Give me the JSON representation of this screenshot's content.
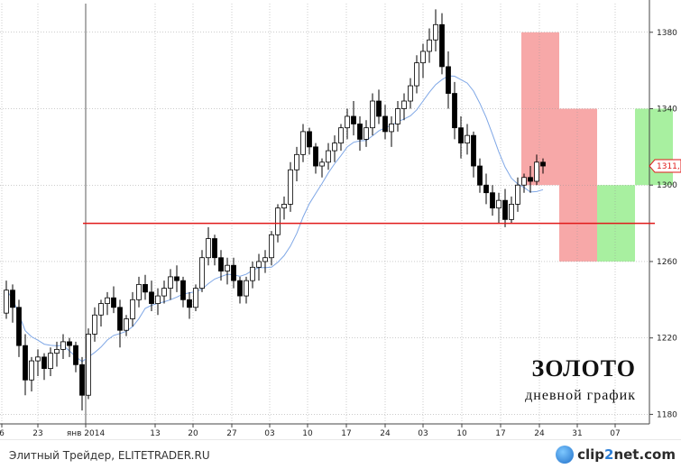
{
  "chart_data": {
    "type": "candlestick",
    "title": "ЗОЛОТО",
    "subtitle": "дневной график",
    "ylim": [
      1175,
      1395
    ],
    "yticks": [
      1180,
      1220,
      1260,
      1300,
      1340,
      1380
    ],
    "xticks": [
      "6",
      "23",
      "янв 2014",
      "13",
      "20",
      "27",
      "03",
      "10",
      "17",
      "24",
      "03",
      "10",
      "17",
      "24",
      "31",
      "07"
    ],
    "current_price_label": "1311,",
    "horizontal_line": 1280,
    "moving_average_color": "#7fa7e6",
    "zones": [
      {
        "color": "#f7a8a8",
        "start_bar": 82,
        "end_bar": 88,
        "low": 1300,
        "high": 1380
      },
      {
        "color": "#f7a8a8",
        "start_bar": 88,
        "end_bar": 94,
        "low": 1260,
        "high": 1340
      },
      {
        "color": "#a8f0a0",
        "start_bar": 94,
        "end_bar": 100,
        "low": 1260,
        "high": 1300
      },
      {
        "color": "#a8f0a0",
        "start_bar": 100,
        "end_bar": 106,
        "low": 1300,
        "high": 1340
      }
    ],
    "candles": [
      [
        1233,
        1250,
        1230,
        1245
      ],
      [
        1245,
        1248,
        1228,
        1236
      ],
      [
        1236,
        1240,
        1210,
        1216
      ],
      [
        1216,
        1222,
        1190,
        1198
      ],
      [
        1198,
        1210,
        1192,
        1208
      ],
      [
        1208,
        1214,
        1200,
        1210
      ],
      [
        1210,
        1212,
        1198,
        1204
      ],
      [
        1204,
        1215,
        1200,
        1212
      ],
      [
        1212,
        1218,
        1205,
        1214
      ],
      [
        1214,
        1222,
        1209,
        1218
      ],
      [
        1218,
        1220,
        1210,
        1216
      ],
      [
        1216,
        1218,
        1202,
        1206
      ],
      [
        1206,
        1210,
        1182,
        1190
      ],
      [
        1190,
        1225,
        1188,
        1222
      ],
      [
        1222,
        1236,
        1218,
        1232
      ],
      [
        1232,
        1240,
        1226,
        1238
      ],
      [
        1238,
        1244,
        1232,
        1241
      ],
      [
        1241,
        1247,
        1233,
        1236
      ],
      [
        1236,
        1240,
        1215,
        1224
      ],
      [
        1224,
        1232,
        1221,
        1230
      ],
      [
        1230,
        1244,
        1226,
        1240
      ],
      [
        1240,
        1252,
        1236,
        1248
      ],
      [
        1248,
        1253,
        1240,
        1244
      ],
      [
        1244,
        1250,
        1234,
        1238
      ],
      [
        1238,
        1246,
        1232,
        1242
      ],
      [
        1242,
        1250,
        1238,
        1246
      ],
      [
        1246,
        1256,
        1240,
        1252
      ],
      [
        1252,
        1258,
        1244,
        1250
      ],
      [
        1250,
        1252,
        1236,
        1240
      ],
      [
        1240,
        1244,
        1230,
        1236
      ],
      [
        1236,
        1248,
        1234,
        1246
      ],
      [
        1246,
        1266,
        1244,
        1262
      ],
      [
        1262,
        1278,
        1258,
        1272
      ],
      [
        1272,
        1274,
        1258,
        1262
      ],
      [
        1262,
        1266,
        1250,
        1255
      ],
      [
        1255,
        1262,
        1248,
        1258
      ],
      [
        1258,
        1262,
        1246,
        1250
      ],
      [
        1250,
        1252,
        1238,
        1242
      ],
      [
        1242,
        1252,
        1238,
        1250
      ],
      [
        1250,
        1260,
        1246,
        1257
      ],
      [
        1257,
        1264,
        1250,
        1260
      ],
      [
        1260,
        1266,
        1254,
        1262
      ],
      [
        1262,
        1276,
        1258,
        1274
      ],
      [
        1274,
        1290,
        1270,
        1288
      ],
      [
        1288,
        1294,
        1282,
        1290
      ],
      [
        1290,
        1312,
        1286,
        1308
      ],
      [
        1308,
        1320,
        1302,
        1316
      ],
      [
        1316,
        1332,
        1312,
        1328
      ],
      [
        1328,
        1330,
        1316,
        1320
      ],
      [
        1320,
        1322,
        1306,
        1310
      ],
      [
        1310,
        1314,
        1304,
        1312
      ],
      [
        1312,
        1322,
        1308,
        1318
      ],
      [
        1318,
        1326,
        1312,
        1322
      ],
      [
        1322,
        1332,
        1318,
        1330
      ],
      [
        1330,
        1340,
        1324,
        1336
      ],
      [
        1336,
        1344,
        1326,
        1332
      ],
      [
        1332,
        1336,
        1318,
        1324
      ],
      [
        1324,
        1334,
        1320,
        1330
      ],
      [
        1330,
        1348,
        1326,
        1344
      ],
      [
        1344,
        1350,
        1332,
        1336
      ],
      [
        1336,
        1342,
        1324,
        1328
      ],
      [
        1328,
        1336,
        1320,
        1332
      ],
      [
        1332,
        1344,
        1328,
        1340
      ],
      [
        1340,
        1348,
        1334,
        1344
      ],
      [
        1344,
        1356,
        1340,
        1352
      ],
      [
        1352,
        1368,
        1348,
        1364
      ],
      [
        1364,
        1374,
        1356,
        1370
      ],
      [
        1370,
        1382,
        1364,
        1376
      ],
      [
        1376,
        1392,
        1370,
        1384
      ],
      [
        1384,
        1390,
        1358,
        1362
      ],
      [
        1362,
        1370,
        1340,
        1348
      ],
      [
        1348,
        1354,
        1324,
        1330
      ],
      [
        1330,
        1336,
        1314,
        1322
      ],
      [
        1322,
        1332,
        1316,
        1326
      ],
      [
        1326,
        1328,
        1304,
        1310
      ],
      [
        1310,
        1314,
        1296,
        1300
      ],
      [
        1300,
        1306,
        1290,
        1296
      ],
      [
        1296,
        1300,
        1284,
        1288
      ],
      [
        1288,
        1296,
        1280,
        1292
      ],
      [
        1292,
        1298,
        1278,
        1282
      ],
      [
        1282,
        1294,
        1280,
        1290
      ],
      [
        1290,
        1304,
        1286,
        1300
      ],
      [
        1300,
        1306,
        1296,
        1304
      ],
      [
        1304,
        1310,
        1296,
        1302
      ],
      [
        1302,
        1316,
        1300,
        1312
      ],
      [
        1312,
        1314,
        1306,
        1310
      ]
    ]
  },
  "footer": {
    "source": "Элитный Трейдер, ELITETRADER.RU",
    "brand_main": "clip",
    "brand_accent": "2",
    "brand_tail": "net.com"
  }
}
